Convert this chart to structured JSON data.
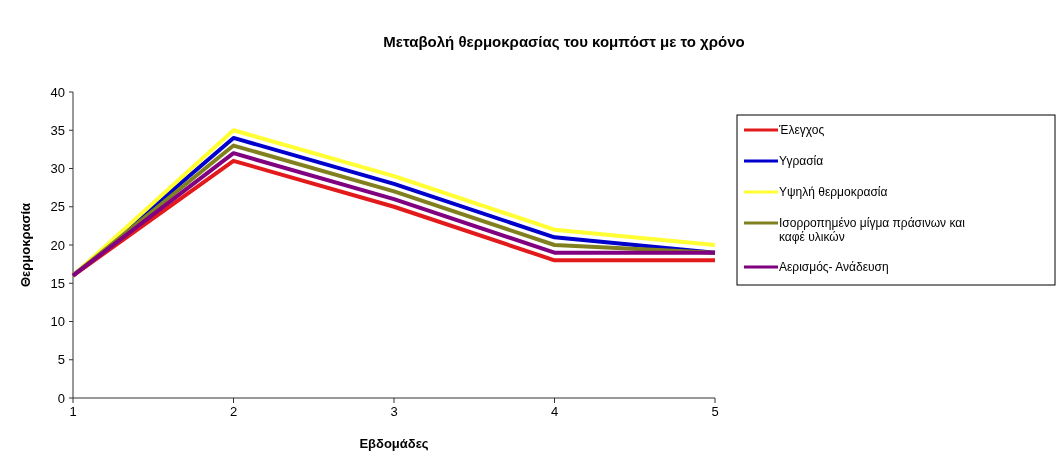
{
  "chart_data": {
    "type": "line",
    "title": "Μεταβολή θερμοκρασίας του κομπόστ με το χρόνο",
    "xlabel": "Εβδομάδες",
    "ylabel": "Θερμοκρασία",
    "x": [
      1,
      2,
      3,
      4,
      5
    ],
    "xlim": [
      1,
      5
    ],
    "xticks": [
      1,
      2,
      3,
      4,
      5
    ],
    "ylim": [
      0,
      40
    ],
    "yticks": [
      0,
      5,
      10,
      15,
      20,
      25,
      30,
      35,
      40
    ],
    "grid": false,
    "legend": "right",
    "marker": "none",
    "line_style": "solid",
    "series": [
      {
        "name": "Έλεγχος",
        "color": "#e31a1c",
        "values": [
          16,
          31,
          25,
          18,
          18
        ]
      },
      {
        "name": "Υγρασία",
        "color": "#0000cc",
        "values": [
          16,
          34,
          28,
          21,
          19
        ]
      },
      {
        "name": "Υψηλή θερμοκρασία",
        "color": "#ffff33",
        "values": [
          16,
          35,
          29,
          22,
          20
        ]
      },
      {
        "name": "Ισορροπημένο μίγμα πράσινων και καφέ υλικών",
        "color": "#808020",
        "values": [
          16,
          33,
          27,
          20,
          19
        ]
      },
      {
        "name": "Αερισμός- Ανάδευση",
        "color": "#800080",
        "values": [
          16,
          32,
          26,
          19,
          19
        ]
      }
    ]
  }
}
